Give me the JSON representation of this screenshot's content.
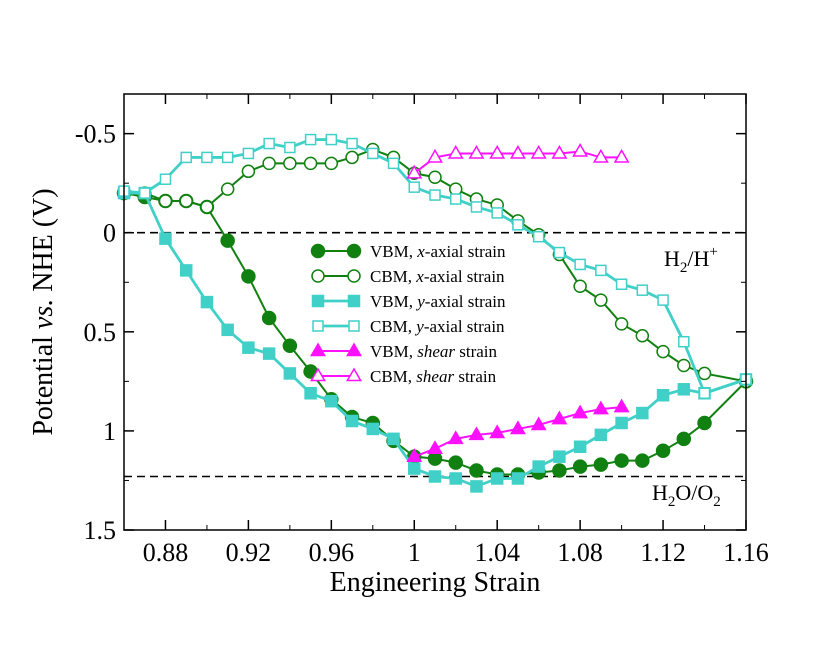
{
  "chart_data": {
    "type": "line",
    "xlabel": "Engineering Strain",
    "ylabel_parts": [
      "Potential ",
      "vs.",
      " NHE (V)"
    ],
    "xlim": [
      0.86,
      1.16
    ],
    "ylim": [
      1.5,
      -0.7
    ],
    "y_inverted": true,
    "xticks": [
      0.88,
      0.92,
      0.96,
      1.0,
      1.04,
      1.08,
      1.12,
      1.16
    ],
    "xtick_labels": [
      "0.88",
      "0.92",
      "0.96",
      "1",
      "1.04",
      "1.08",
      "1.12",
      "1.16"
    ],
    "yticks": [
      -0.5,
      0,
      0.5,
      1,
      1.5
    ],
    "ytick_labels": [
      "-0.5",
      "0",
      "0.5",
      "1",
      "1.5"
    ],
    "reference_lines": [
      {
        "name": "H2/H+",
        "y": 0.0,
        "label_main": "H",
        "label_sub": "2",
        "label_mid": "/H",
        "label_sup": "+"
      },
      {
        "name": "H2O/O2",
        "y": 1.23,
        "label_main": "H",
        "label_sub": "2",
        "label_mid": "O/O",
        "label_sub2": "2"
      }
    ],
    "legend_position": "center",
    "series": [
      {
        "name": "VBM, x-axial strain",
        "label_parts": [
          "VBM, ",
          "x",
          "-axial strain"
        ],
        "color": "#108010",
        "marker": "circle",
        "filled": true,
        "x": [
          0.86,
          0.87,
          0.88,
          0.89,
          0.9,
          0.91,
          0.92,
          0.93,
          0.94,
          0.95,
          0.96,
          0.97,
          0.98,
          0.99,
          1.0,
          1.01,
          1.02,
          1.03,
          1.04,
          1.05,
          1.06,
          1.07,
          1.08,
          1.09,
          1.1,
          1.11,
          1.12,
          1.13,
          1.14,
          1.16
        ],
        "y": [
          -0.2,
          -0.18,
          -0.16,
          -0.16,
          -0.13,
          0.04,
          0.22,
          0.43,
          0.57,
          0.7,
          0.84,
          0.93,
          0.96,
          1.05,
          1.13,
          1.14,
          1.16,
          1.2,
          1.22,
          1.22,
          1.21,
          1.2,
          1.18,
          1.17,
          1.15,
          1.15,
          1.1,
          1.04,
          0.96,
          0.75
        ]
      },
      {
        "name": "CBM, x-axial strain",
        "label_parts": [
          "CBM, ",
          "x",
          "-axial strain"
        ],
        "color": "#108010",
        "marker": "circle",
        "filled": false,
        "x": [
          0.86,
          0.87,
          0.88,
          0.89,
          0.9,
          0.91,
          0.92,
          0.93,
          0.94,
          0.95,
          0.96,
          0.97,
          0.98,
          0.99,
          1.0,
          1.01,
          1.02,
          1.03,
          1.04,
          1.05,
          1.06,
          1.07,
          1.08,
          1.09,
          1.1,
          1.11,
          1.12,
          1.13,
          1.14,
          1.16
        ],
        "y": [
          -0.2,
          -0.2,
          -0.16,
          -0.16,
          -0.13,
          -0.22,
          -0.31,
          -0.35,
          -0.35,
          -0.35,
          -0.35,
          -0.38,
          -0.42,
          -0.38,
          -0.3,
          -0.28,
          -0.22,
          -0.17,
          -0.14,
          -0.06,
          0.01,
          0.11,
          0.27,
          0.34,
          0.46,
          0.52,
          0.6,
          0.67,
          0.71,
          0.75
        ]
      },
      {
        "name": "VBM, y-axial strain",
        "label_parts": [
          "VBM, ",
          "y",
          "-axial strain"
        ],
        "color": "#40d0c8",
        "marker": "square",
        "filled": true,
        "x": [
          0.86,
          0.87,
          0.88,
          0.89,
          0.9,
          0.91,
          0.92,
          0.93,
          0.94,
          0.95,
          0.96,
          0.97,
          0.98,
          0.99,
          1.0,
          1.01,
          1.02,
          1.03,
          1.04,
          1.05,
          1.06,
          1.07,
          1.08,
          1.09,
          1.1,
          1.11,
          1.12,
          1.13,
          1.14,
          1.16
        ],
        "y": [
          -0.2,
          -0.2,
          0.03,
          0.19,
          0.35,
          0.49,
          0.58,
          0.61,
          0.71,
          0.81,
          0.85,
          0.95,
          0.99,
          1.04,
          1.19,
          1.23,
          1.24,
          1.28,
          1.24,
          1.24,
          1.18,
          1.13,
          1.08,
          1.02,
          0.96,
          0.91,
          0.82,
          0.79,
          0.81,
          0.74
        ]
      },
      {
        "name": "CBM, y-axial strain",
        "label_parts": [
          "CBM, ",
          "y",
          "-axial strain"
        ],
        "color": "#40d0c8",
        "marker": "square",
        "filled": false,
        "x": [
          0.86,
          0.87,
          0.88,
          0.89,
          0.9,
          0.91,
          0.92,
          0.93,
          0.94,
          0.95,
          0.96,
          0.97,
          0.98,
          0.99,
          1.0,
          1.01,
          1.02,
          1.03,
          1.04,
          1.05,
          1.06,
          1.07,
          1.08,
          1.09,
          1.1,
          1.11,
          1.12,
          1.13,
          1.14,
          1.16
        ],
        "y": [
          -0.21,
          -0.2,
          -0.27,
          -0.38,
          -0.38,
          -0.38,
          -0.4,
          -0.45,
          -0.43,
          -0.47,
          -0.47,
          -0.45,
          -0.4,
          -0.35,
          -0.23,
          -0.19,
          -0.17,
          -0.13,
          -0.1,
          -0.04,
          0.02,
          0.1,
          0.16,
          0.19,
          0.26,
          0.29,
          0.34,
          0.55,
          0.81,
          0.74
        ]
      },
      {
        "name": "VBM, shear strain",
        "label_parts": [
          "VBM, ",
          "shear",
          " strain"
        ],
        "color": "#ff10ff",
        "marker": "triangle",
        "filled": true,
        "x": [
          1.0,
          1.01,
          1.02,
          1.03,
          1.04,
          1.05,
          1.06,
          1.07,
          1.08,
          1.09,
          1.1
        ],
        "y": [
          1.13,
          1.09,
          1.04,
          1.02,
          1.01,
          0.99,
          0.97,
          0.94,
          0.91,
          0.89,
          0.88
        ]
      },
      {
        "name": "CBM, shear strain",
        "label_parts": [
          "CBM, ",
          "shear",
          " strain"
        ],
        "color": "#ff10ff",
        "marker": "triangle",
        "filled": false,
        "x": [
          1.0,
          1.01,
          1.02,
          1.03,
          1.04,
          1.05,
          1.06,
          1.07,
          1.08,
          1.09,
          1.1
        ],
        "y": [
          -0.3,
          -0.38,
          -0.4,
          -0.4,
          -0.4,
          -0.4,
          -0.4,
          -0.4,
          -0.41,
          -0.38,
          -0.38
        ]
      }
    ]
  }
}
